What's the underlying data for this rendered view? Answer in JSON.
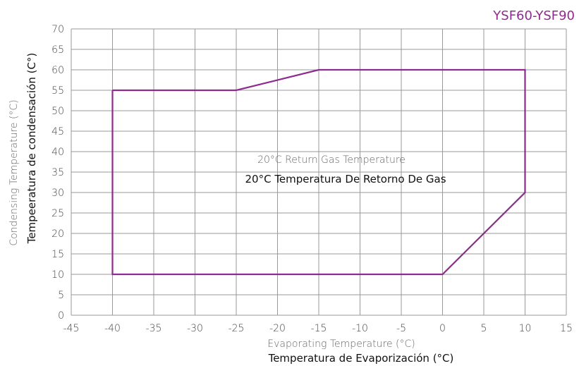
{
  "chart_data": {
    "type": "line",
    "model_label": "YSF60-YSF90",
    "xlabel_en": "Evaporating Temperature (°C)",
    "xlabel_es": "Temperatura de Evaporización (°C)",
    "ylabel_en": "Condensing Temperature (°C)",
    "ylabel_es": "Tempeeratura de condensación (C°)",
    "annotation_en": "20°C Return Gas Temperature",
    "annotation_es": "20°C Temperatura De Retorno De Gas",
    "xlim": [
      -45,
      15
    ],
    "ylim": [
      0,
      70
    ],
    "x_ticks": [
      -45,
      -40,
      -35,
      -30,
      -25,
      -20,
      -15,
      -10,
      -5,
      0,
      5,
      10,
      15
    ],
    "y_ticks": [
      0,
      5,
      10,
      15,
      20,
      25,
      30,
      35,
      40,
      45,
      50,
      55,
      60,
      65,
      70
    ],
    "grid": true,
    "series": [
      {
        "x": [
          -40,
          -25,
          -15,
          10,
          10,
          0,
          -40,
          -40
        ],
        "y": [
          55,
          55,
          60,
          60,
          30,
          10,
          10,
          55
        ]
      }
    ],
    "colors": {
      "envelope": "#8e2c8e",
      "model_label": "#8e2c8e",
      "grid": "#999999"
    }
  }
}
